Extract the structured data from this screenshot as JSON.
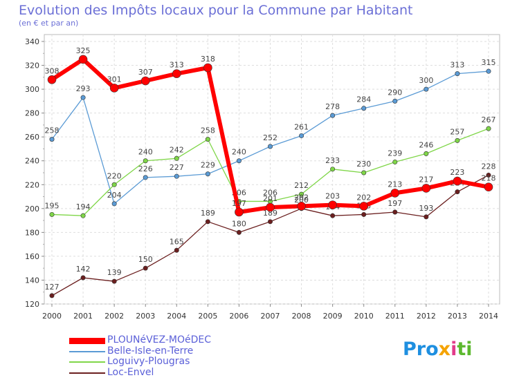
{
  "header": {
    "title": "Evolution des Impôts locaux pour la Commune par Habitant",
    "subtitle": "(en € et par an)"
  },
  "logo": {
    "text": "Proxiti",
    "parts": [
      "Pro",
      "x",
      "i",
      "ti"
    ]
  },
  "chart_data": {
    "type": "line",
    "title": "Evolution des Impôts locaux pour la Commune par Habitant",
    "subtitle": "(en € et par an)",
    "xlabel": "",
    "ylabel": "",
    "x": [
      "2000",
      "2001",
      "2002",
      "2003",
      "2004",
      "2005",
      "2006",
      "2007",
      "2008",
      "2009",
      "2010",
      "2011",
      "2012",
      "2013",
      "2014"
    ],
    "ylim": [
      120,
      340
    ],
    "yticks": [
      120,
      140,
      160,
      180,
      200,
      220,
      240,
      260,
      280,
      300,
      320,
      340
    ],
    "grid": true,
    "legend_position": "bottom-left",
    "series": [
      {
        "name": "Belle-Isle-en-Terre",
        "color": "#5b9bd5",
        "values": [
          258,
          293,
          204,
          226,
          227,
          229,
          240,
          252,
          261,
          278,
          284,
          290,
          300,
          313,
          315
        ],
        "labels": [
          "258",
          "293",
          "204",
          "226",
          "227",
          "229",
          "240",
          "252",
          "261",
          "278",
          "284",
          "290",
          "300",
          "313",
          "315"
        ]
      },
      {
        "name": "Loguivy-Plougras",
        "color": "#7fd648",
        "values": [
          195,
          194,
          220,
          240,
          242,
          258,
          206,
          206,
          212,
          233,
          230,
          239,
          246,
          257,
          267
        ],
        "labels": [
          "195",
          "194",
          "220",
          "240",
          "242",
          "258",
          "206",
          "206",
          "212",
          "233",
          "230",
          "239",
          "246",
          "257",
          "267"
        ]
      },
      {
        "name": "Loc-Envel",
        "color": "#6b1f1f",
        "values": [
          127,
          142,
          139,
          150,
          165,
          189,
          180,
          189,
          200,
          194,
          195,
          197,
          193,
          214,
          228
        ],
        "labels": [
          "127",
          "142",
          "139",
          "150",
          "165",
          "189",
          "180",
          "189",
          "200",
          "194",
          "195",
          "197",
          "193",
          "214",
          "228"
        ]
      },
      {
        "name": "PLOUNéVEZ-MOéDEC",
        "color": "#ff0000",
        "values": [
          308,
          325,
          301,
          307,
          313,
          318,
          197,
          201,
          202,
          203,
          202,
          213,
          217,
          223,
          218
        ],
        "labels": [
          "308",
          "325",
          "301",
          "307",
          "313",
          "318",
          "197",
          "201",
          "202",
          "203",
          "202",
          "213",
          "217",
          "223",
          "218"
        ]
      }
    ],
    "legend_order": [
      "PLOUNéVEZ-MOéDEC",
      "Belle-Isle-en-Terre",
      "Loguivy-Plougras",
      "Loc-Envel"
    ]
  }
}
